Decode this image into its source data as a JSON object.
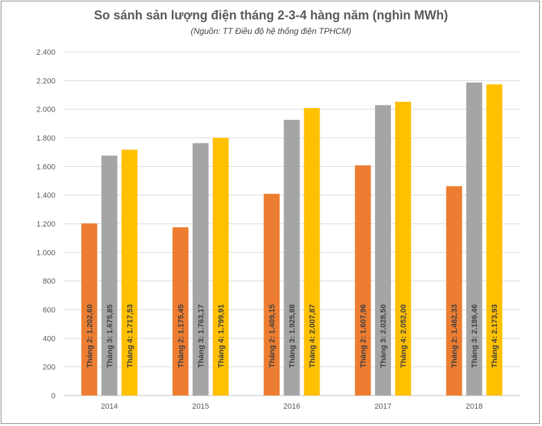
{
  "chart_data": {
    "type": "bar",
    "title": "So sánh sản lượng điện tháng 2-3-4 hàng năm (nghìn MWh)",
    "subtitle": "(Nguồn: TT Điều độ hệ thống điện TPHCM)",
    "categories": [
      "2014",
      "2015",
      "2016",
      "2017",
      "2018"
    ],
    "series": [
      {
        "name": "Tháng 2",
        "color": "#ED7D31",
        "values": [
          1202.6,
          1175.45,
          1409.15,
          1607.96,
          1462.33
        ],
        "labels": [
          "Tháng 2: 1.202,60",
          "Tháng 2: 1.175,45",
          "Tháng 2: 1.409,15",
          "Tháng 2: 1.607,96",
          "Tháng 2: 1.462,33"
        ]
      },
      {
        "name": "Tháng 3",
        "color": "#A5A5A5",
        "values": [
          1675.85,
          1763.17,
          1925.88,
          2028.5,
          2186.46
        ],
        "labels": [
          "Tháng 3: 1.675,85",
          "Tháng 3: 1.763,17",
          "Tháng 3: 1.925,88",
          "Tháng 3: 2.028,50",
          "Tháng 3: 2.186,46"
        ]
      },
      {
        "name": "Tháng 4",
        "color": "#FFC000",
        "values": [
          1717.53,
          1799.91,
          2007.87,
          2052.0,
          2173.93
        ],
        "labels": [
          "Tháng 4: 1.717,53",
          "Tháng 4: 1.799,91",
          "Tháng 4: 2.007,87",
          "Tháng 4: 2.052,00",
          "Tháng 4: 2.173,93"
        ]
      }
    ],
    "ylim": [
      0,
      2400
    ],
    "yticks": [
      0,
      200,
      400,
      600,
      800,
      1000,
      1200,
      1400,
      1600,
      1800,
      2000,
      2200,
      2400
    ],
    "ytick_labels": [
      "0",
      "200",
      "400",
      "600",
      "800",
      "1.000",
      "1.200",
      "1.400",
      "1.600",
      "1.800",
      "2.000",
      "2.200",
      "2.400"
    ],
    "grid": true,
    "legend": "none",
    "xlabel": "",
    "ylabel": ""
  }
}
